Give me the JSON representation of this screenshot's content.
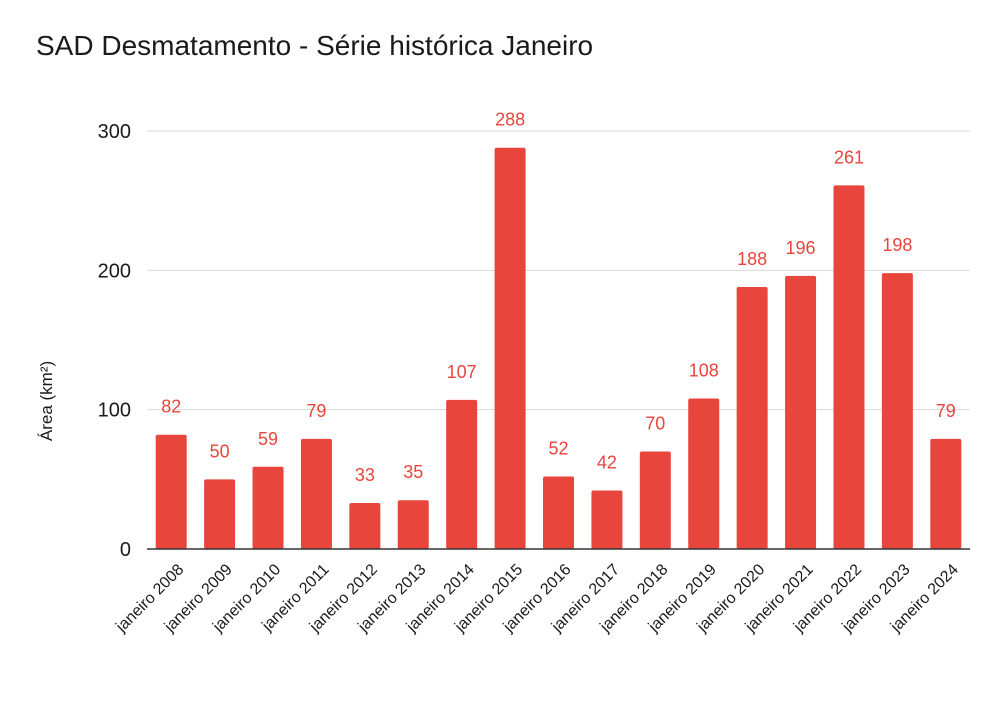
{
  "chart_data": {
    "type": "bar",
    "title": "SAD Desmatamento - Série histórica Janeiro",
    "xlabel": "",
    "ylabel": "Área (km²)",
    "ylim": [
      0,
      300
    ],
    "yticks": [
      0,
      100,
      200,
      300
    ],
    "grid": true,
    "legend": "none",
    "bar_color": "#e8453c",
    "label_color": "#e8453c",
    "categories": [
      "janeiro 2008",
      "janeiro 2009",
      "janeiro 2010",
      "janeiro 2011",
      "janeiro 2012",
      "janeiro 2013",
      "janeiro 2014",
      "janeiro 2015",
      "janeiro 2016",
      "janeiro 2017",
      "janeiro 2018",
      "janeiro 2019",
      "janeiro 2020",
      "janeiro 2021",
      "janeiro 2022",
      "janeiro 2023",
      "janeiro 2024"
    ],
    "values": [
      82,
      50,
      59,
      79,
      33,
      35,
      107,
      288,
      52,
      42,
      70,
      108,
      188,
      196,
      261,
      198,
      79
    ]
  }
}
